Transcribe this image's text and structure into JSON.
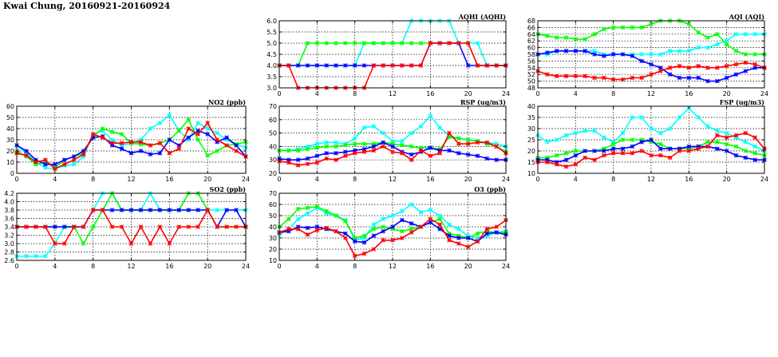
{
  "page": {
    "title": "Kwai Chung, 20160921-20160924"
  },
  "colors": {
    "cyan": "#00ffff",
    "green": "#00ff00",
    "blue": "#0000ff",
    "red": "#ff0000"
  },
  "chart_data": [
    {
      "id": "aqhi",
      "type": "line",
      "title": "AQHI (AQHI)",
      "xlim": [
        0,
        24
      ],
      "xticks": [
        0,
        4,
        8,
        12,
        16,
        20,
        24
      ],
      "ylim": [
        3.0,
        6.0
      ],
      "yticks": [
        "3.0",
        "3.5",
        "4.0",
        "4.5",
        "5.0",
        "5.5",
        "6.0"
      ],
      "grid": true,
      "series": [
        {
          "color": "cyan",
          "values": [
            4,
            4,
            4,
            4,
            4,
            4,
            4,
            4,
            4,
            5,
            5,
            5,
            5,
            5,
            6,
            6,
            6,
            6,
            6,
            5,
            5,
            5,
            4,
            4,
            4
          ]
        },
        {
          "color": "green",
          "values": [
            4,
            4,
            4,
            5,
            5,
            5,
            5,
            5,
            5,
            5,
            5,
            5,
            5,
            5,
            5,
            5,
            5,
            5,
            5,
            5,
            5,
            4,
            4,
            4,
            4
          ]
        },
        {
          "color": "blue",
          "values": [
            4,
            4,
            4,
            4,
            4,
            4,
            4,
            4,
            4,
            4,
            4,
            4,
            4,
            4,
            4,
            4,
            5,
            5,
            5,
            5,
            4,
            4,
            4,
            4,
            4
          ]
        },
        {
          "color": "red",
          "values": [
            4,
            4,
            3,
            3,
            3,
            3,
            3,
            3,
            3,
            3,
            4,
            4,
            4,
            4,
            4,
            4,
            5,
            5,
            5,
            5,
            5,
            4,
            4,
            4,
            4
          ]
        }
      ]
    },
    {
      "id": "aqi",
      "type": "line",
      "title": "AQI (AQI)",
      "xlim": [
        0,
        24
      ],
      "xticks": [
        0,
        4,
        8,
        12,
        16,
        20,
        24
      ],
      "ylim": [
        48,
        68
      ],
      "yticks": [
        "48",
        "50",
        "52",
        "54",
        "56",
        "58",
        "60",
        "62",
        "64",
        "66",
        "68"
      ],
      "grid": true,
      "series": [
        {
          "color": "cyan",
          "values": [
            58,
            58,
            59,
            59,
            59,
            59,
            59,
            58,
            58,
            58,
            58,
            58,
            58,
            58,
            59,
            59,
            59,
            60,
            60,
            61,
            62,
            64,
            64,
            64,
            64
          ]
        },
        {
          "color": "green",
          "values": [
            64,
            63.5,
            63,
            63,
            62.5,
            62.5,
            64,
            65.5,
            66,
            66,
            66,
            66,
            67,
            68,
            68,
            68,
            67,
            64.5,
            63,
            64,
            61,
            59,
            58,
            58,
            58
          ]
        },
        {
          "color": "blue",
          "values": [
            58,
            58.5,
            59,
            59,
            59,
            59,
            58,
            57.5,
            58,
            58,
            57.5,
            56,
            55,
            54,
            52,
            51,
            51,
            51,
            50,
            50,
            51,
            52,
            53,
            54,
            54
          ]
        },
        {
          "color": "red",
          "values": [
            53,
            52,
            51.5,
            51.5,
            51.5,
            51.5,
            51,
            51,
            50.5,
            50.5,
            51,
            51,
            52,
            53,
            54,
            54.5,
            54,
            54.5,
            54,
            54,
            54.5,
            55,
            55.5,
            55,
            54
          ]
        }
      ]
    },
    {
      "id": "no2",
      "type": "line",
      "title": "NO2 (ppb)",
      "xlim": [
        0,
        24
      ],
      "xticks": [
        0,
        4,
        8,
        12,
        16,
        20,
        24
      ],
      "ylim": [
        0,
        60
      ],
      "yticks": [
        "0",
        "10",
        "20",
        "30",
        "40",
        "50",
        "60"
      ],
      "grid": true,
      "series": [
        {
          "color": "cyan",
          "values": [
            25,
            18,
            10,
            5,
            4,
            7,
            8,
            15,
            35,
            38,
            30,
            25,
            27,
            30,
            40,
            45,
            52,
            38,
            30,
            45,
            40,
            36,
            30,
            26,
            23
          ]
        },
        {
          "color": "green",
          "values": [
            20,
            15,
            8,
            10,
            5,
            12,
            15,
            18,
            33,
            40,
            37,
            35,
            27,
            26,
            25,
            27,
            30,
            38,
            48,
            30,
            16,
            20,
            25,
            26,
            28
          ]
        },
        {
          "color": "blue",
          "values": [
            25,
            20,
            12,
            8,
            8,
            12,
            15,
            20,
            32,
            33,
            25,
            22,
            18,
            20,
            17,
            18,
            30,
            25,
            32,
            38,
            35,
            28,
            32,
            25,
            15
          ]
        },
        {
          "color": "red",
          "values": [
            18,
            16,
            10,
            12,
            4,
            8,
            12,
            17,
            35,
            32,
            27,
            27,
            28,
            28,
            25,
            27,
            18,
            22,
            40,
            35,
            45,
            30,
            25,
            20,
            15
          ]
        }
      ]
    },
    {
      "id": "rsp",
      "type": "line",
      "title": "RSP (ug/m3)",
      "xlim": [
        0,
        24
      ],
      "xticks": [
        0,
        4,
        8,
        12,
        16,
        20,
        24
      ],
      "ylim": [
        20,
        70
      ],
      "yticks": [
        "20",
        "30",
        "40",
        "50",
        "60",
        "70"
      ],
      "grid": true,
      "series": [
        {
          "color": "cyan",
          "values": [
            37,
            37,
            38,
            40,
            42,
            43,
            43,
            42,
            46,
            54,
            55,
            50,
            44,
            44,
            50,
            55,
            63,
            54,
            48,
            46,
            45,
            44,
            43,
            42,
            40
          ]
        },
        {
          "color": "green",
          "values": [
            37,
            37,
            37,
            38,
            39,
            40,
            40,
            41,
            42,
            42,
            42,
            43,
            42,
            41,
            40,
            39,
            39,
            38,
            47,
            46,
            45,
            44,
            42,
            40,
            36
          ]
        },
        {
          "color": "blue",
          "values": [
            31,
            30,
            30,
            31,
            33,
            35,
            35,
            36,
            37,
            38,
            40,
            43,
            40,
            36,
            34,
            36,
            39,
            37,
            37,
            35,
            34,
            33,
            31,
            30,
            30
          ]
        },
        {
          "color": "red",
          "values": [
            29,
            28,
            26,
            27,
            28,
            31,
            30,
            33,
            35,
            36,
            37,
            40,
            36,
            35,
            30,
            37,
            33,
            35,
            50,
            42,
            42,
            43,
            43,
            40,
            35
          ]
        }
      ]
    },
    {
      "id": "fsp",
      "type": "line",
      "title": "FSP (ug/m3)",
      "xlim": [
        0,
        24
      ],
      "xticks": [
        0,
        4,
        8,
        12,
        16,
        20,
        24
      ],
      "ylim": [
        10,
        40
      ],
      "yticks": [
        "10",
        "15",
        "20",
        "25",
        "30",
        "35",
        "40"
      ],
      "grid": true,
      "series": [
        {
          "color": "cyan",
          "values": [
            27,
            24,
            25,
            27,
            28,
            29,
            29,
            26,
            24,
            28,
            35,
            35,
            30,
            28,
            30,
            35,
            39,
            35,
            31,
            29,
            28,
            26,
            24,
            22,
            20
          ]
        },
        {
          "color": "green",
          "values": [
            17,
            17,
            18,
            19,
            20,
            20,
            20,
            21,
            23,
            25,
            25,
            25,
            24,
            23,
            21,
            21,
            21,
            22,
            24,
            24,
            23,
            22,
            20,
            19,
            18
          ]
        },
        {
          "color": "blue",
          "values": [
            16,
            16,
            15,
            16,
            18,
            20,
            20,
            20,
            21,
            21,
            22,
            24,
            25,
            21,
            21,
            21,
            22,
            22,
            22,
            21,
            20,
            18,
            17,
            16,
            16
          ]
        },
        {
          "color": "red",
          "values": [
            15,
            15,
            14,
            13,
            14,
            17,
            16,
            18,
            19,
            19,
            19,
            20,
            18,
            18,
            17,
            20,
            20,
            21,
            22,
            27,
            26,
            27,
            28,
            26,
            21
          ]
        }
      ]
    },
    {
      "id": "so2",
      "type": "line",
      "title": "SO2 (ppb)",
      "xlim": [
        0,
        24
      ],
      "xticks": [
        0,
        4,
        8,
        12,
        16,
        20,
        24
      ],
      "ylim": [
        2.6,
        4.2
      ],
      "yticks": [
        "2.6",
        "2.8",
        "3.0",
        "3.2",
        "3.4",
        "3.6",
        "3.8",
        "4.0",
        "4.2"
      ],
      "grid": true,
      "series": [
        {
          "color": "cyan",
          "values": [
            2.7,
            2.7,
            2.7,
            2.7,
            3.0,
            3.4,
            3.4,
            3.4,
            3.8,
            4.2,
            4.2,
            3.8,
            3.8,
            3.8,
            4.2,
            3.8,
            3.8,
            3.8,
            3.8,
            3.8,
            3.8,
            3.8,
            3.8,
            3.8,
            3.8
          ]
        },
        {
          "color": "green",
          "values": [
            3.4,
            3.4,
            3.4,
            3.4,
            3.4,
            3.4,
            3.4,
            3.0,
            3.4,
            3.8,
            4.2,
            3.8,
            3.8,
            3.8,
            3.8,
            3.8,
            3.8,
            3.8,
            4.2,
            4.2,
            3.8,
            3.4,
            3.4,
            3.4,
            3.4
          ]
        },
        {
          "color": "blue",
          "values": [
            3.4,
            3.4,
            3.4,
            3.4,
            3.4,
            3.4,
            3.4,
            3.4,
            3.8,
            3.8,
            3.8,
            3.8,
            3.8,
            3.8,
            3.8,
            3.8,
            3.8,
            3.8,
            3.8,
            3.8,
            3.8,
            3.4,
            3.8,
            3.8,
            3.4
          ]
        },
        {
          "color": "red",
          "values": [
            3.4,
            3.4,
            3.4,
            3.4,
            3.0,
            3.0,
            3.4,
            3.4,
            3.8,
            3.8,
            3.4,
            3.4,
            3.0,
            3.4,
            3.0,
            3.4,
            3.0,
            3.4,
            3.4,
            3.4,
            3.8,
            3.4,
            3.4,
            3.4,
            3.4
          ]
        }
      ]
    },
    {
      "id": "o3",
      "type": "line",
      "title": "O3 (ppb)",
      "xlim": [
        0,
        24
      ],
      "xticks": [
        0,
        4,
        8,
        12,
        16,
        20,
        24
      ],
      "ylim": [
        10,
        70
      ],
      "yticks": [
        "10",
        "20",
        "30",
        "40",
        "50",
        "60",
        "70"
      ],
      "grid": true,
      "series": [
        {
          "color": "cyan",
          "values": [
            33,
            38,
            47,
            52,
            57,
            52,
            50,
            46,
            28,
            30,
            42,
            47,
            50,
            54,
            60,
            53,
            55,
            50,
            42,
            38,
            32,
            30,
            32,
            35,
            36
          ]
        },
        {
          "color": "green",
          "values": [
            40,
            47,
            56,
            57,
            58,
            54,
            50,
            45,
            30,
            32,
            38,
            40,
            38,
            36,
            38,
            40,
            44,
            47,
            34,
            32,
            30,
            34,
            36,
            35,
            35
          ]
        },
        {
          "color": "blue",
          "values": [
            35,
            36,
            40,
            39,
            40,
            38,
            36,
            34,
            27,
            26,
            32,
            36,
            40,
            46,
            43,
            40,
            44,
            38,
            32,
            30,
            30,
            27,
            34,
            35,
            33
          ]
        },
        {
          "color": "red",
          "values": [
            35,
            38,
            38,
            33,
            37,
            39,
            36,
            30,
            14,
            16,
            20,
            28,
            28,
            30,
            35,
            40,
            47,
            42,
            28,
            25,
            22,
            27,
            38,
            40,
            46
          ]
        }
      ]
    }
  ]
}
